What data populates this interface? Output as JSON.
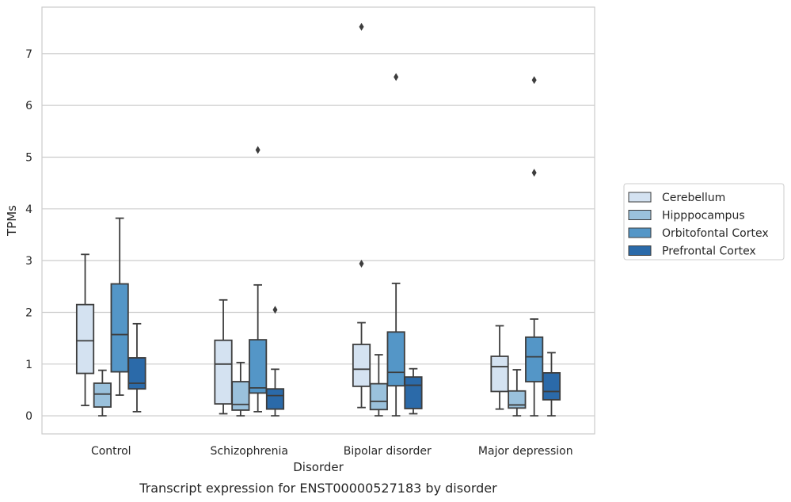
{
  "caption": "Transcript expression for ENST00000527183 by disorder",
  "chart_data": {
    "type": "box",
    "xlabel": "Disorder",
    "ylabel": "TPMs",
    "ylim": [
      -0.35,
      7.9
    ],
    "yticks": [
      0,
      1,
      2,
      3,
      4,
      5,
      6,
      7
    ],
    "grid": "horizontal",
    "legend_position": "right",
    "categories": [
      "Control",
      "Schizophrenia",
      "Bipolar disorder",
      "Major depression"
    ],
    "series": [
      {
        "name": "Cerebellum",
        "color": "#d4e2f1",
        "boxes": [
          {
            "whislo": 0.2,
            "q1": 0.82,
            "med": 1.45,
            "q3": 2.15,
            "whishi": 3.12,
            "fliers": []
          },
          {
            "whislo": 0.04,
            "q1": 0.23,
            "med": 1.0,
            "q3": 1.46,
            "whishi": 2.24,
            "fliers": []
          },
          {
            "whislo": 0.16,
            "q1": 0.57,
            "med": 0.9,
            "q3": 1.38,
            "whishi": 1.8,
            "fliers": [
              2.94,
              7.52
            ]
          },
          {
            "whislo": 0.13,
            "q1": 0.47,
            "med": 0.95,
            "q3": 1.15,
            "whishi": 1.74,
            "fliers": []
          }
        ]
      },
      {
        "name": "Hipppocampus",
        "color": "#9ac1dc",
        "boxes": [
          {
            "whislo": 0.0,
            "q1": 0.17,
            "med": 0.42,
            "q3": 0.63,
            "whishi": 0.88,
            "fliers": []
          },
          {
            "whislo": 0.0,
            "q1": 0.11,
            "med": 0.22,
            "q3": 0.66,
            "whishi": 1.03,
            "fliers": []
          },
          {
            "whislo": 0.0,
            "q1": 0.12,
            "med": 0.28,
            "q3": 0.62,
            "whishi": 1.18,
            "fliers": []
          },
          {
            "whislo": 0.0,
            "q1": 0.15,
            "med": 0.21,
            "q3": 0.48,
            "whishi": 0.89,
            "fliers": []
          }
        ]
      },
      {
        "name": "Orbitofontal Cortex",
        "color": "#5496c7",
        "boxes": [
          {
            "whislo": 0.4,
            "q1": 0.85,
            "med": 1.57,
            "q3": 2.55,
            "whishi": 3.82,
            "fliers": []
          },
          {
            "whislo": 0.08,
            "q1": 0.44,
            "med": 0.54,
            "q3": 1.47,
            "whishi": 2.53,
            "fliers": [
              5.14
            ]
          },
          {
            "whislo": 0.0,
            "q1": 0.58,
            "med": 0.84,
            "q3": 1.62,
            "whishi": 2.56,
            "fliers": [
              6.55
            ]
          },
          {
            "whislo": 0.0,
            "q1": 0.66,
            "med": 1.14,
            "q3": 1.52,
            "whishi": 1.87,
            "fliers": [
              4.7,
              6.49
            ]
          }
        ]
      },
      {
        "name": "Prefrontal Cortex",
        "color": "#2b6aa9",
        "boxes": [
          {
            "whislo": 0.08,
            "q1": 0.52,
            "med": 0.63,
            "q3": 1.12,
            "whishi": 1.78,
            "fliers": []
          },
          {
            "whislo": 0.0,
            "q1": 0.13,
            "med": 0.39,
            "q3": 0.52,
            "whishi": 0.9,
            "fliers": [
              2.05
            ]
          },
          {
            "whislo": 0.04,
            "q1": 0.14,
            "med": 0.59,
            "q3": 0.75,
            "whishi": 0.91,
            "fliers": []
          },
          {
            "whislo": 0.0,
            "q1": 0.31,
            "med": 0.47,
            "q3": 0.83,
            "whishi": 1.22,
            "fliers": []
          }
        ]
      }
    ]
  }
}
